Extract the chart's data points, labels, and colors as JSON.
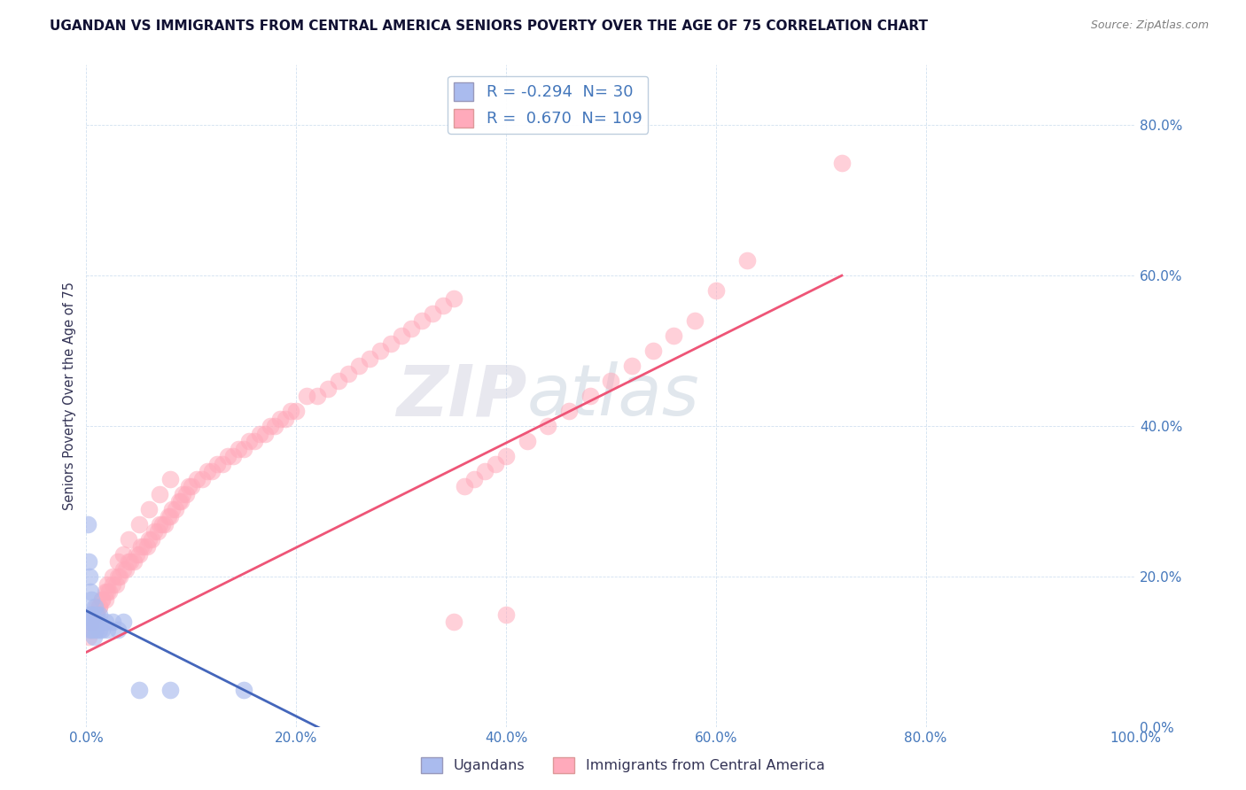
{
  "title": "UGANDAN VS IMMIGRANTS FROM CENTRAL AMERICA SENIORS POVERTY OVER THE AGE OF 75 CORRELATION CHART",
  "source": "Source: ZipAtlas.com",
  "ylabel": "Seniors Poverty Over the Age of 75",
  "xlim": [
    0,
    1.0
  ],
  "ylim": [
    0.0,
    0.88
  ],
  "xticks": [
    0.0,
    0.2,
    0.4,
    0.6,
    0.8,
    1.0
  ],
  "yticks": [
    0.0,
    0.2,
    0.4,
    0.6,
    0.8
  ],
  "ugandan_R": -0.294,
  "ugandan_N": 30,
  "central_america_R": 0.67,
  "central_america_N": 109,
  "blue_color": "#AABBEE",
  "pink_color": "#FFAABB",
  "blue_line_color": "#4466BB",
  "pink_line_color": "#EE5577",
  "legend_blue_label": "Ugandans",
  "legend_pink_label": "Immigrants from Central America",
  "background_color": "#FFFFFF",
  "grid_color": "#CCDDEE",
  "title_color": "#111133",
  "axis_label_color": "#333355",
  "tick_label_color": "#4477BB",
  "watermark_ZIP": "ZIP",
  "watermark_atlas": "atlas",
  "ugandan_x": [
    0.002,
    0.003,
    0.004,
    0.005,
    0.006,
    0.007,
    0.008,
    0.009,
    0.01,
    0.012,
    0.015,
    0.018,
    0.02,
    0.025,
    0.03,
    0.035,
    0.001,
    0.002,
    0.003,
    0.004,
    0.005,
    0.006,
    0.007,
    0.008,
    0.01,
    0.012,
    0.05,
    0.08,
    0.15,
    0.22
  ],
  "ugandan_y": [
    0.15,
    0.13,
    0.14,
    0.15,
    0.13,
    0.12,
    0.14,
    0.13,
    0.14,
    0.15,
    0.13,
    0.14,
    0.13,
    0.14,
    0.13,
    0.14,
    0.27,
    0.22,
    0.2,
    0.18,
    0.17,
    0.15,
    0.14,
    0.16,
    0.15,
    0.13,
    0.05,
    0.05,
    0.05,
    -0.02
  ],
  "central_america_x": [
    0.005,
    0.008,
    0.01,
    0.012,
    0.015,
    0.018,
    0.02,
    0.022,
    0.025,
    0.028,
    0.03,
    0.032,
    0.035,
    0.038,
    0.04,
    0.042,
    0.045,
    0.048,
    0.05,
    0.052,
    0.055,
    0.058,
    0.06,
    0.062,
    0.065,
    0.068,
    0.07,
    0.072,
    0.075,
    0.078,
    0.08,
    0.082,
    0.085,
    0.088,
    0.09,
    0.092,
    0.095,
    0.098,
    0.1,
    0.105,
    0.11,
    0.115,
    0.12,
    0.125,
    0.13,
    0.135,
    0.14,
    0.145,
    0.15,
    0.155,
    0.16,
    0.165,
    0.17,
    0.175,
    0.18,
    0.185,
    0.19,
    0.195,
    0.2,
    0.21,
    0.22,
    0.23,
    0.24,
    0.25,
    0.26,
    0.27,
    0.28,
    0.29,
    0.3,
    0.31,
    0.32,
    0.33,
    0.34,
    0.35,
    0.36,
    0.37,
    0.38,
    0.39,
    0.4,
    0.42,
    0.44,
    0.46,
    0.48,
    0.5,
    0.52,
    0.54,
    0.56,
    0.58,
    0.6,
    0.63,
    0.002,
    0.005,
    0.008,
    0.01,
    0.012,
    0.015,
    0.018,
    0.02,
    0.025,
    0.03,
    0.035,
    0.04,
    0.05,
    0.06,
    0.07,
    0.08,
    0.35,
    0.4,
    0.72
  ],
  "central_america_y": [
    0.14,
    0.15,
    0.16,
    0.16,
    0.17,
    0.17,
    0.18,
    0.18,
    0.19,
    0.19,
    0.2,
    0.2,
    0.21,
    0.21,
    0.22,
    0.22,
    0.22,
    0.23,
    0.23,
    0.24,
    0.24,
    0.24,
    0.25,
    0.25,
    0.26,
    0.26,
    0.27,
    0.27,
    0.27,
    0.28,
    0.28,
    0.29,
    0.29,
    0.3,
    0.3,
    0.31,
    0.31,
    0.32,
    0.32,
    0.33,
    0.33,
    0.34,
    0.34,
    0.35,
    0.35,
    0.36,
    0.36,
    0.37,
    0.37,
    0.38,
    0.38,
    0.39,
    0.39,
    0.4,
    0.4,
    0.41,
    0.41,
    0.42,
    0.42,
    0.44,
    0.44,
    0.45,
    0.46,
    0.47,
    0.48,
    0.49,
    0.5,
    0.51,
    0.52,
    0.53,
    0.54,
    0.55,
    0.56,
    0.57,
    0.32,
    0.33,
    0.34,
    0.35,
    0.36,
    0.38,
    0.4,
    0.42,
    0.44,
    0.46,
    0.48,
    0.5,
    0.52,
    0.54,
    0.58,
    0.62,
    0.12,
    0.13,
    0.14,
    0.15,
    0.16,
    0.17,
    0.18,
    0.19,
    0.2,
    0.22,
    0.23,
    0.25,
    0.27,
    0.29,
    0.31,
    0.33,
    0.14,
    0.15,
    0.75
  ],
  "ca_trend_x_start": 0.0,
  "ca_trend_x_end": 0.72,
  "ca_trend_y_start": 0.1,
  "ca_trend_y_end": 0.6,
  "ug_trend_x_start": 0.0,
  "ug_trend_x_end": 0.25,
  "ug_trend_y_start": 0.155,
  "ug_trend_y_end": -0.02
}
